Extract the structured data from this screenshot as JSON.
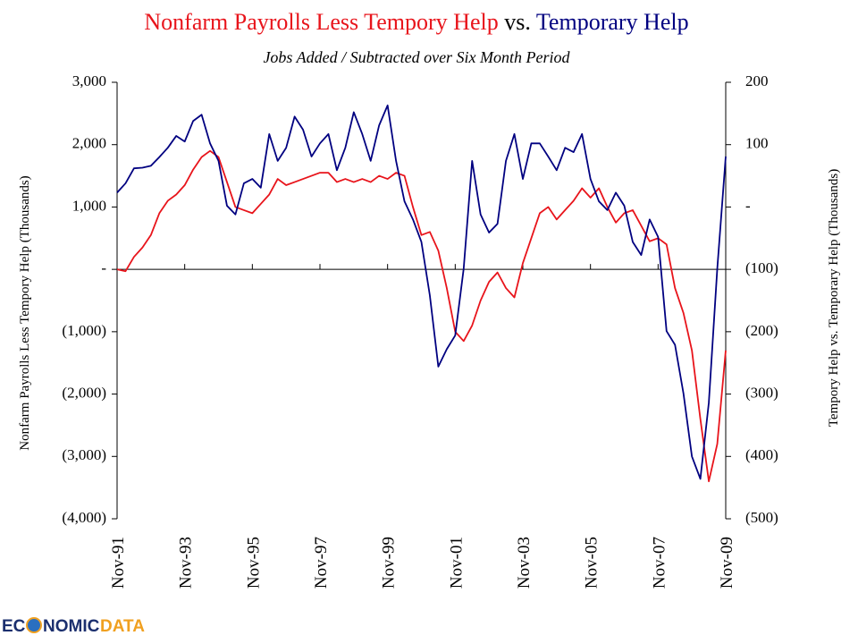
{
  "chart_data": {
    "type": "line",
    "title_connector": "vs.",
    "subtitle": "Jobs Added / Subtracted over Six Month Period",
    "ylabel": "Nonfarm Payrolls Less Tempory Help (Thousands)",
    "y2label": "Tempory Help vs. Temporary Help (Thousands)",
    "logo": [
      "EC",
      "NOMIC",
      "DATA"
    ],
    "categories": [
      "Nov-91",
      null,
      null,
      null,
      null,
      null,
      null,
      null,
      "Nov-93",
      null,
      null,
      null,
      null,
      null,
      null,
      null,
      "Nov-95",
      null,
      null,
      null,
      null,
      null,
      null,
      null,
      "Nov-97",
      null,
      null,
      null,
      null,
      null,
      null,
      null,
      "Nov-99",
      null,
      null,
      null,
      null,
      null,
      null,
      null,
      "Nov-01",
      null,
      null,
      null,
      null,
      null,
      null,
      null,
      "Nov-03",
      null,
      null,
      null,
      null,
      null,
      null,
      null,
      "Nov-05",
      null,
      null,
      null,
      null,
      null,
      null,
      null,
      "Nov-07",
      null,
      null,
      null,
      null,
      null,
      null,
      null,
      "Nov-09"
    ],
    "series": [
      {
        "name": "Nonfarm Payrolls Less Tempory Help",
        "color": "#e8141b",
        "values": [
          0,
          -30,
          200,
          350,
          550,
          900,
          1100,
          1200,
          1350,
          1600,
          1800,
          1900,
          1800,
          1400,
          1000,
          950,
          900,
          1050,
          1200,
          1450,
          1350,
          1400,
          1450,
          1500,
          1550,
          1550,
          1400,
          1450,
          1400,
          1450,
          1400,
          1500,
          1450,
          1550,
          1500,
          1000,
          550,
          600,
          300,
          -300,
          -1000,
          -1150,
          -900,
          -500,
          -200,
          -50,
          -300,
          -450,
          100,
          500,
          900,
          1000,
          800,
          950,
          1100,
          1300,
          1150,
          1300,
          1000,
          750,
          900,
          950,
          700,
          450,
          500,
          400,
          -300,
          -700,
          -1300,
          -2400,
          -3400,
          -2800,
          -1300
        ]
      },
      {
        "name": "Temporary Help",
        "color": "#000080",
        "axis": "y2",
        "values": [
          23,
          38,
          62,
          63,
          66,
          80,
          95,
          114,
          105,
          138,
          148,
          102,
          74,
          2,
          -12,
          38,
          45,
          31,
          117,
          74,
          95,
          145,
          124,
          81,
          102,
          117,
          59,
          95,
          152,
          117,
          74,
          131,
          163,
          74,
          9,
          -20,
          -56,
          -142,
          -256,
          -228,
          -206,
          -99,
          74,
          -12,
          -41,
          -27,
          74,
          117,
          45,
          102,
          102,
          81,
          59,
          95,
          88,
          117,
          45,
          9,
          -5,
          23,
          2,
          -56,
          -77,
          -20,
          -48,
          -199,
          -221,
          -299,
          -400,
          -436,
          -314,
          -99,
          81
        ]
      }
    ],
    "ylim": [
      -4000,
      3000
    ],
    "yticks": [
      {
        "value": 3000,
        "label": "3,000"
      },
      {
        "value": 2000,
        "label": "2,000"
      },
      {
        "value": 1000,
        "label": "1,000"
      },
      {
        "value": 0,
        "label": "-"
      },
      {
        "value": -1000,
        "label": "(1,000)"
      },
      {
        "value": -2000,
        "label": "(2,000)"
      },
      {
        "value": -3000,
        "label": "(3,000)"
      },
      {
        "value": -4000,
        "label": "(4,000)"
      }
    ],
    "y2lim": [
      -500,
      200
    ],
    "y2ticks": [
      200,
      100,
      {
        "value": 0,
        "label": "-"
      },
      {
        "value": -100,
        "label": "(100)"
      },
      {
        "value": -200,
        "label": "(200)"
      },
      {
        "value": -300,
        "label": "(300)"
      },
      {
        "value": -400,
        "label": "(400)"
      },
      {
        "value": -500,
        "label": "(500)"
      }
    ],
    "grid": false
  }
}
